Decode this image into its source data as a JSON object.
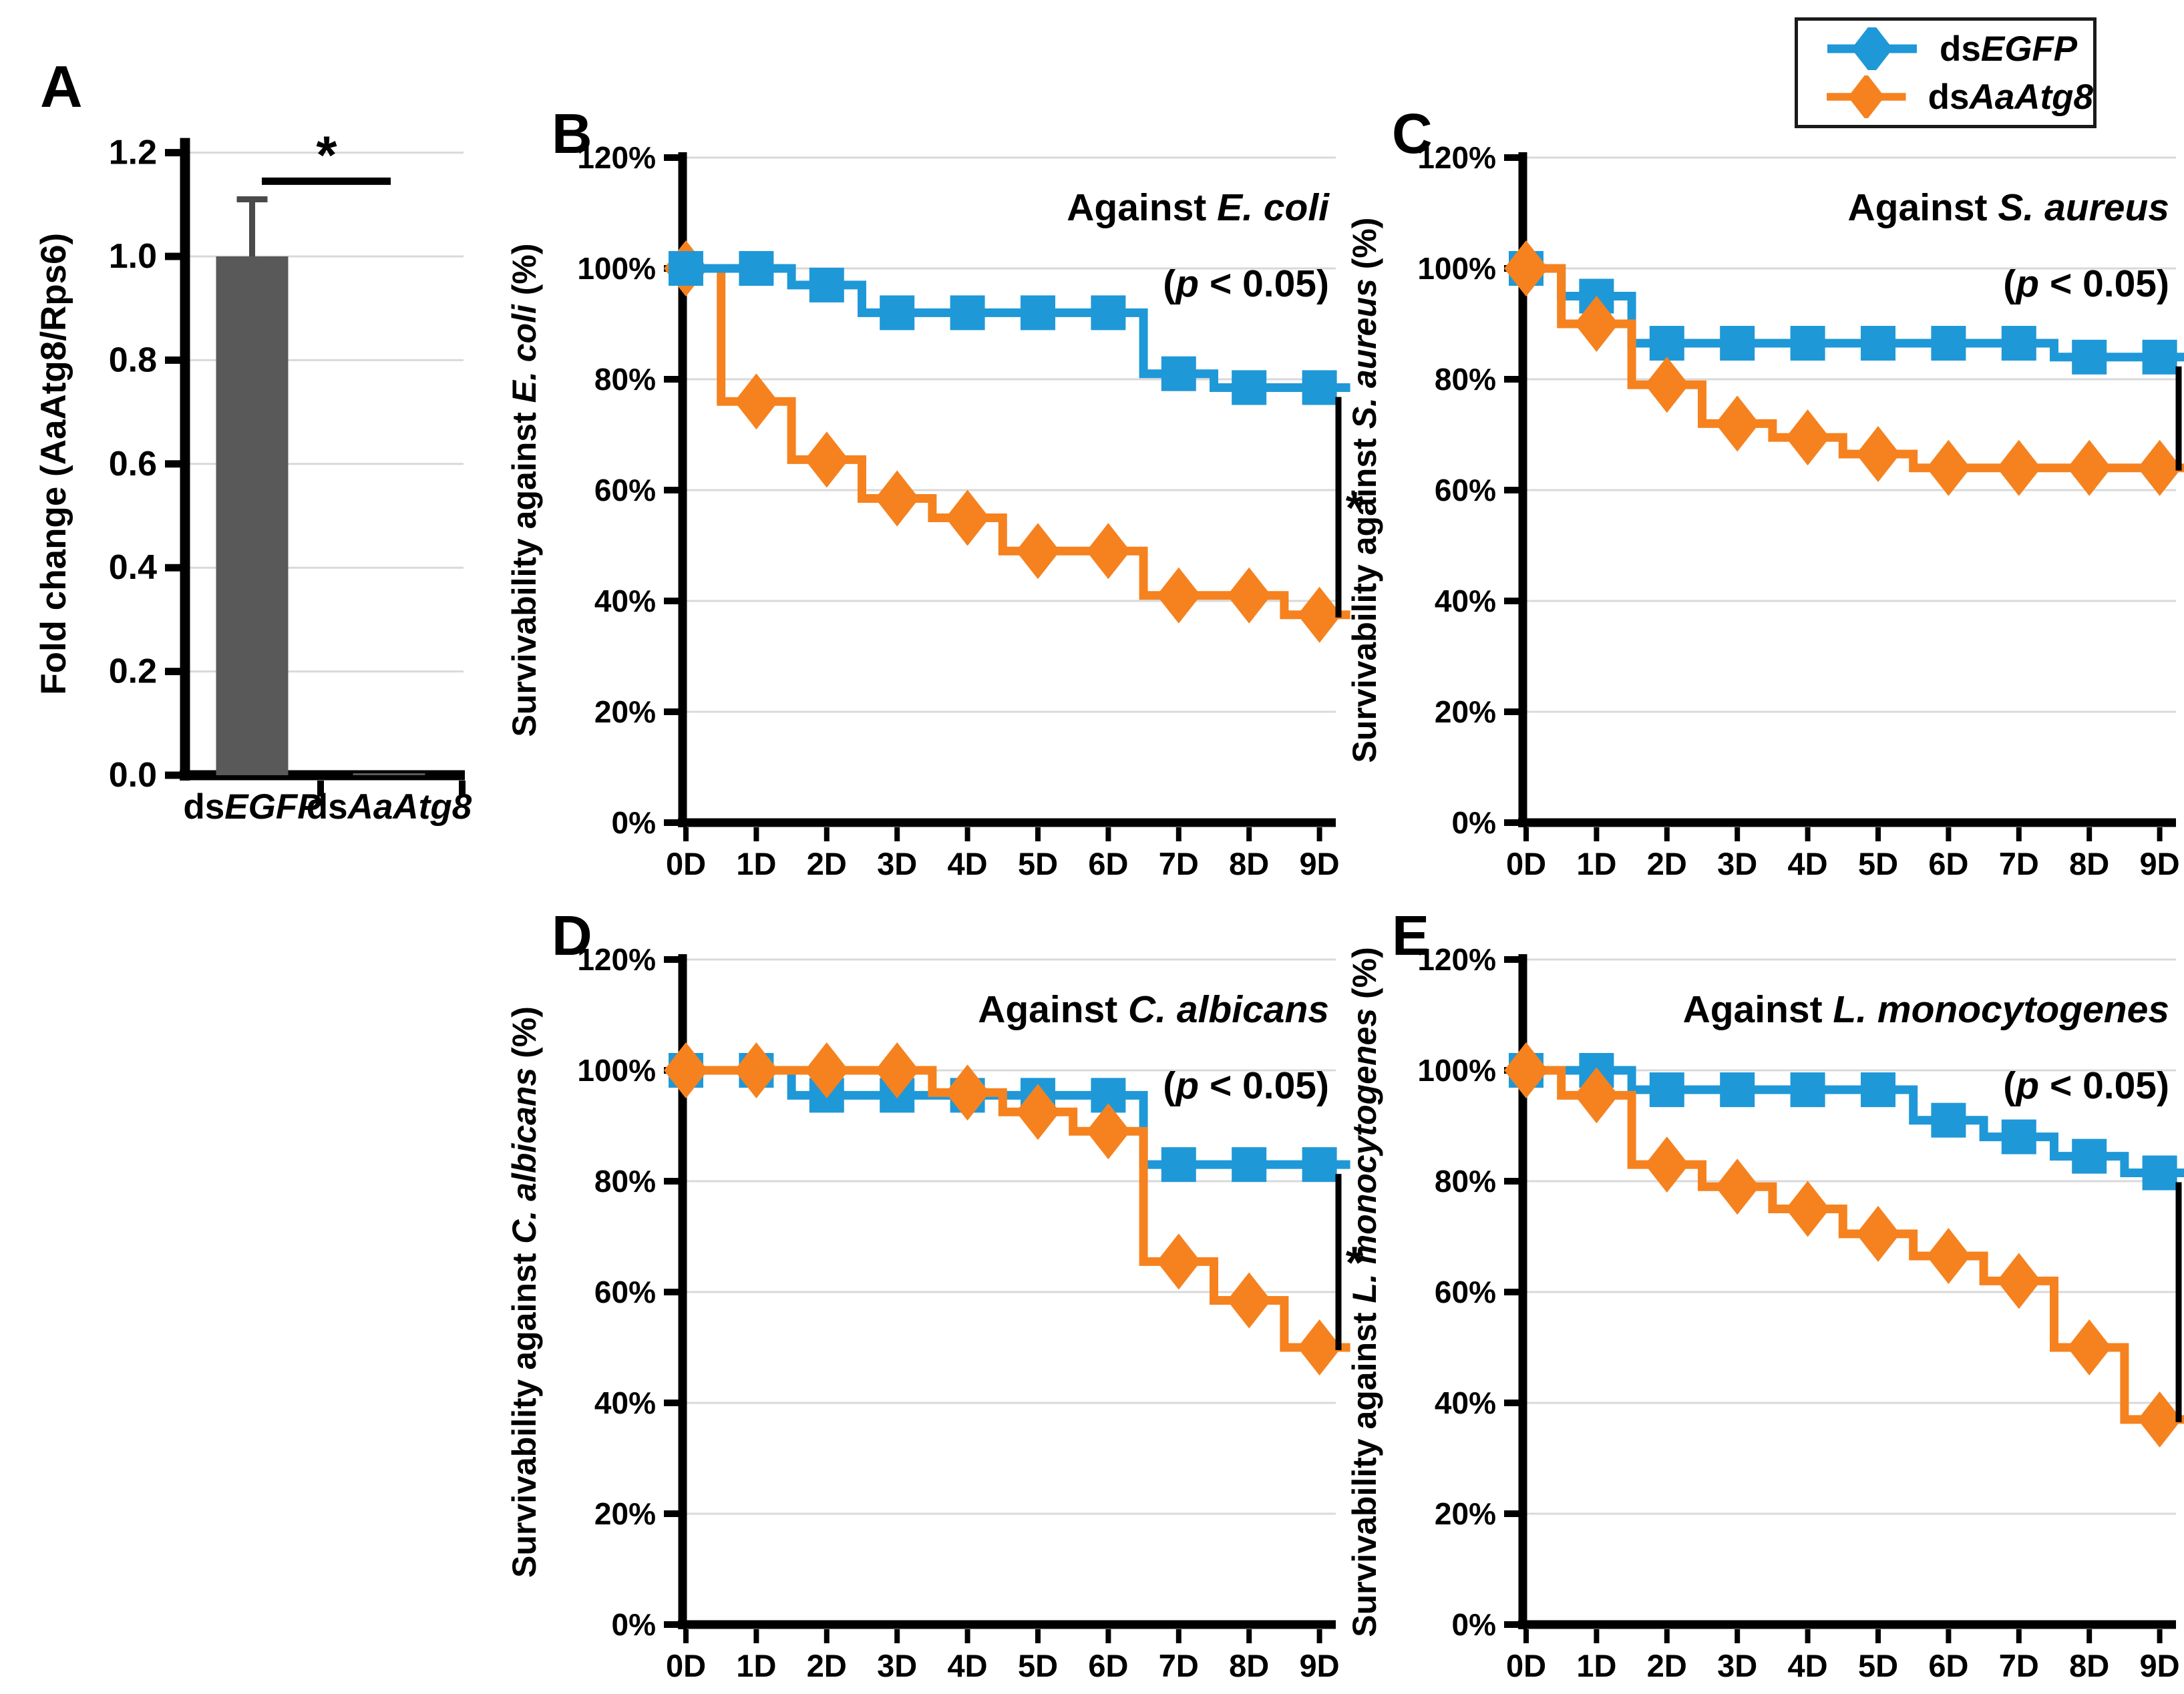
{
  "figure": {
    "background": "#FFFFFF",
    "colors": {
      "dsEGFP": "#1F98D8",
      "dsAaAtg8": "#F5821F",
      "bar": "#595959",
      "error_bar": "#4A4A4A",
      "axis": "#000000",
      "gridline": "#D9D9D9",
      "significance": "#000000"
    },
    "legend": {
      "items": [
        {
          "name": "dsEGFP",
          "label_prefix": "ds",
          "label_gene": "EGFP",
          "marker": "diamond",
          "color": "#1F98D8"
        },
        {
          "name": "dsAaAtg8",
          "label_prefix": "ds",
          "label_gene": "AaAtg8",
          "marker": "diamond",
          "color": "#F5821F"
        }
      ]
    }
  },
  "chart_data": [
    {
      "panel": "A",
      "type": "bar",
      "ylabel": "Fold change (AaAtg8/Rps6)",
      "categories": [
        {
          "prefix": "ds",
          "gene": "EGFP"
        },
        {
          "prefix": "ds",
          "gene": "AaAtg8"
        }
      ],
      "values": [
        1.0,
        0.003
      ],
      "error_up": [
        0.11,
        0
      ],
      "yticks": [
        "0.0",
        "0.2",
        "0.4",
        "0.6",
        "0.8",
        "1.0",
        "1.2"
      ],
      "ytick_values": [
        0,
        0.2,
        0.4,
        0.6,
        0.8,
        1.0,
        1.2
      ],
      "ylim": [
        0,
        1.2
      ],
      "grid": true,
      "significance": {
        "label": "*",
        "level": 1.145
      }
    },
    {
      "panel": "B",
      "type": "line",
      "subtype": "step-survival",
      "title_prefix": "Against ",
      "title_species": "E. coli",
      "pvalue_open": "(",
      "pvalue_italic": "p",
      "pvalue_rest": " < 0.05)",
      "ylabel_prefix": "Survivability against ",
      "ylabel_species": "E. coli",
      "ylabel_suffix": " (%)",
      "x": [
        "0D",
        "1D",
        "2D",
        "3D",
        "4D",
        "5D",
        "6D",
        "7D",
        "8D",
        "9D"
      ],
      "yticks": [
        "0%",
        "20%",
        "40%",
        "60%",
        "80%",
        "100%",
        "120%"
      ],
      "ytick_values": [
        0,
        20,
        40,
        60,
        80,
        100,
        120
      ],
      "ylim": [
        0,
        120
      ],
      "grid": true,
      "legend_position": "top-right-outside",
      "series": [
        {
          "name": "dsEGFP",
          "marker": "square",
          "values": [
            100,
            100,
            97,
            92,
            92,
            92,
            92,
            81,
            78.5,
            78.5
          ]
        },
        {
          "name": "dsAaAtg8",
          "marker": "diamond",
          "values": [
            100,
            76,
            65.5,
            58.5,
            55,
            49,
            49,
            41,
            41,
            37.5
          ]
        }
      ],
      "draw_order": [
        1,
        0
      ],
      "significance": {
        "label": "*"
      }
    },
    {
      "panel": "C",
      "type": "line",
      "subtype": "step-survival",
      "title_prefix": "Against ",
      "title_species": "S. aureus",
      "pvalue_open": "(",
      "pvalue_italic": "p",
      "pvalue_rest": " < 0.05)",
      "ylabel_prefix": "Survivability against ",
      "ylabel_species": "S. aureus",
      "ylabel_suffix": " (%)",
      "x": [
        "0D",
        "1D",
        "2D",
        "3D",
        "4D",
        "5D",
        "6D",
        "7D",
        "8D",
        "9D"
      ],
      "yticks": [
        "0%",
        "20%",
        "40%",
        "60%",
        "80%",
        "100%",
        "120%"
      ],
      "ytick_values": [
        0,
        20,
        40,
        60,
        80,
        100,
        120
      ],
      "ylim": [
        0,
        120
      ],
      "grid": true,
      "series": [
        {
          "name": "dsEGFP",
          "marker": "square",
          "values": [
            100,
            95,
            86.5,
            86.5,
            86.5,
            86.5,
            86.5,
            86.5,
            84,
            84
          ]
        },
        {
          "name": "dsAaAtg8",
          "marker": "diamond",
          "values": [
            100,
            90,
            79,
            72,
            69.5,
            66.5,
            64,
            64,
            64,
            64
          ]
        }
      ],
      "draw_order": [
        0,
        1
      ],
      "significance": {
        "label": "*"
      }
    },
    {
      "panel": "D",
      "type": "line",
      "subtype": "step-survival",
      "title_prefix": "Against ",
      "title_species": "C. albicans",
      "pvalue_open": "(",
      "pvalue_italic": "p",
      "pvalue_rest": " < 0.05)",
      "ylabel_prefix": "Survivability against ",
      "ylabel_species": "C. albicans",
      "ylabel_suffix": " (%)",
      "x": [
        "0D",
        "1D",
        "2D",
        "3D",
        "4D",
        "5D",
        "6D",
        "7D",
        "8D",
        "9D"
      ],
      "yticks": [
        "0%",
        "20%",
        "40%",
        "60%",
        "80%",
        "100%",
        "120%"
      ],
      "ytick_values": [
        0,
        20,
        40,
        60,
        80,
        100,
        120
      ],
      "ylim": [
        0,
        120
      ],
      "grid": true,
      "series": [
        {
          "name": "dsEGFP",
          "marker": "square",
          "values": [
            100,
            100,
            95.5,
            95.5,
            95.5,
            95.5,
            95.5,
            83,
            83,
            83
          ]
        },
        {
          "name": "dsAaAtg8",
          "marker": "diamond",
          "values": [
            100,
            100,
            100,
            100,
            96,
            92.5,
            89,
            65.5,
            58.5,
            50
          ]
        }
      ],
      "draw_order": [
        0,
        1
      ],
      "significance": {
        "label": "*"
      }
    },
    {
      "panel": "E",
      "type": "line",
      "subtype": "step-survival",
      "title_prefix": "Against ",
      "title_species": "L. monocytogenes",
      "pvalue_open": "(",
      "pvalue_italic": "p",
      "pvalue_rest": " < 0.05)",
      "ylabel_prefix": "Survivability against ",
      "ylabel_species": "L. monocytogenes",
      "ylabel_suffix": " (%)",
      "x": [
        "0D",
        "1D",
        "2D",
        "3D",
        "4D",
        "5D",
        "6D",
        "7D",
        "8D",
        "9D"
      ],
      "yticks": [
        "0%",
        "20%",
        "40%",
        "60%",
        "80%",
        "100%",
        "120%"
      ],
      "ytick_values": [
        0,
        20,
        40,
        60,
        80,
        100,
        120
      ],
      "ylim": [
        0,
        120
      ],
      "grid": true,
      "series": [
        {
          "name": "dsEGFP",
          "marker": "square",
          "values": [
            100,
            100,
            96.5,
            96.5,
            96.5,
            96.5,
            91,
            88,
            84.5,
            81.5
          ]
        },
        {
          "name": "dsAaAtg8",
          "marker": "diamond",
          "values": [
            100,
            95.5,
            83,
            79,
            75,
            70.5,
            66.5,
            62,
            50,
            37
          ]
        }
      ],
      "draw_order": [
        0,
        1
      ],
      "significance": {
        "label": "*"
      }
    }
  ]
}
